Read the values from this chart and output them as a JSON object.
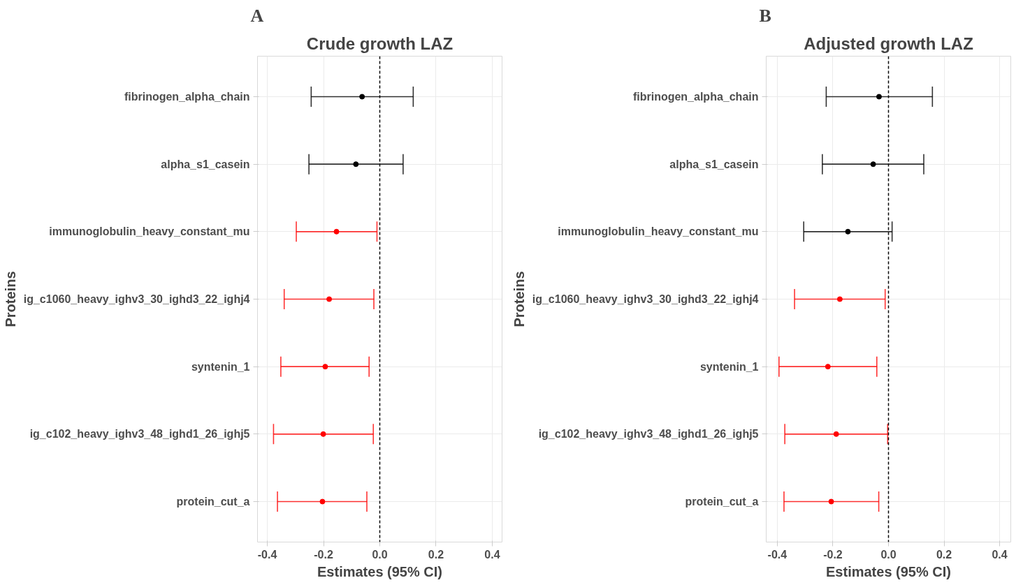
{
  "chart_data": [
    {
      "type": "scatter",
      "orientation": "horizontal",
      "title": "Crude growth LAZ",
      "xlabel": "Estimates (95% CI)",
      "ylabel": "Proteins",
      "annotations": [
        "A"
      ],
      "categories": [
        "fibrinogen_alpha_chain",
        "alpha_s1_casein",
        "immunoglobulin_heavy_constant_mu",
        "ig_c1060_heavy_ighv3_30_ighd3_22_ighj4",
        "syntenin_1",
        "ig_c102_heavy_ighv3_48_ighd1_26_ighj5",
        "protein_cut_a"
      ],
      "values": [
        -0.063,
        -0.085,
        -0.154,
        -0.18,
        -0.194,
        -0.201,
        -0.204
      ],
      "errors": [
        [
          -0.244,
          0.119
        ],
        [
          -0.252,
          0.083
        ],
        [
          -0.297,
          -0.01
        ],
        [
          -0.34,
          -0.021
        ],
        [
          -0.352,
          -0.038
        ],
        [
          -0.378,
          -0.023
        ],
        [
          -0.364,
          -0.046
        ]
      ],
      "colors": [
        "#000000",
        "#000000",
        "#ff0000",
        "#ff0000",
        "#ff0000",
        "#ff0000",
        "#ff0000"
      ],
      "xlim": [
        -0.435,
        0.435
      ],
      "xticks": [
        -0.4,
        -0.2,
        {
          "value": 0,
          "label": "0.0"
        },
        0.2,
        0.4
      ],
      "ref_lines": [
        {
          "axis": "x",
          "value": 0,
          "color": "#000000",
          "line_style": "dashed"
        }
      ],
      "grid": true,
      "marker": "circle"
    },
    {
      "type": "scatter",
      "orientation": "horizontal",
      "title": "Adjusted growth LAZ",
      "xlabel": "Estimates (95% CI)",
      "ylabel": "Proteins",
      "annotations": [
        "B"
      ],
      "categories": [
        "fibrinogen_alpha_chain",
        "alpha_s1_casein",
        "immunoglobulin_heavy_constant_mu",
        "ig_c1060_heavy_ighv3_30_ighd3_22_ighj4",
        "syntenin_1",
        "ig_c102_heavy_ighv3_48_ighd1_26_ighj5",
        "protein_cut_a"
      ],
      "values": [
        -0.034,
        -0.055,
        -0.146,
        -0.175,
        -0.218,
        -0.188,
        -0.206
      ],
      "errors": [
        [
          -0.224,
          0.158
        ],
        [
          -0.238,
          0.127
        ],
        [
          -0.305,
          0.013
        ],
        [
          -0.338,
          -0.012
        ],
        [
          -0.394,
          -0.042
        ],
        [
          -0.373,
          -0.003
        ],
        [
          -0.376,
          -0.035
        ]
      ],
      "colors": [
        "#000000",
        "#000000",
        "#000000",
        "#ff0000",
        "#ff0000",
        "#ff0000",
        "#ff0000"
      ],
      "xlim": [
        -0.44,
        0.44
      ],
      "xticks": [
        -0.4,
        -0.2,
        {
          "value": 0,
          "label": "0.0"
        },
        0.2,
        0.4
      ],
      "ref_lines": [
        {
          "axis": "x",
          "value": 0,
          "color": "#000000",
          "line_style": "dashed"
        }
      ],
      "grid": true,
      "marker": "circle"
    }
  ]
}
